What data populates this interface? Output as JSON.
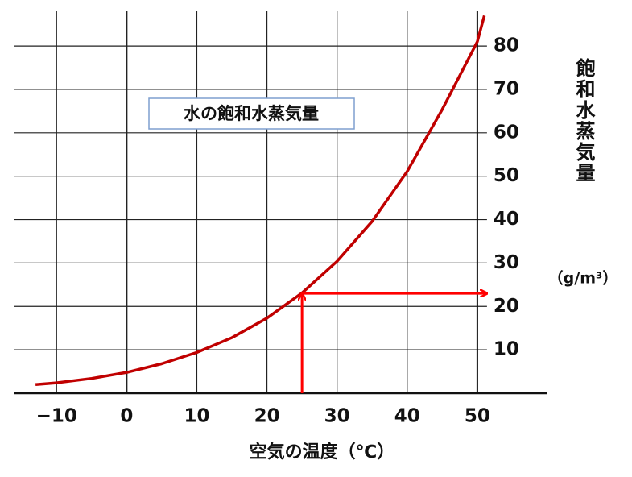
{
  "chart_data": {
    "type": "line",
    "series": [
      {
        "name": "水の飽和水蒸気量",
        "color": "#c00000",
        "x": [
          -13,
          -10,
          -5,
          0,
          5,
          10,
          15,
          20,
          25,
          30,
          35,
          40,
          45,
          50,
          51
        ],
        "values": [
          2.0,
          2.4,
          3.4,
          4.8,
          6.8,
          9.4,
          12.8,
          17.3,
          23.1,
          30.4,
          39.6,
          51.1,
          65.4,
          81,
          87
        ]
      }
    ],
    "x_label": "空気の温度（℃）",
    "y_label": "飽和水蒸気量",
    "y_unit": "（g/m³）",
    "xlim": [
      -16,
      60
    ],
    "ylim": [
      0,
      88
    ],
    "xticks": [
      {
        "value": -10,
        "label": "−10"
      },
      0,
      10,
      20,
      30,
      40,
      50
    ],
    "yticks": [
      10,
      20,
      30,
      40,
      50,
      60,
      70,
      80
    ],
    "marker": {
      "x": 25,
      "y": 23,
      "color": "#ff0000"
    },
    "grid": true
  }
}
